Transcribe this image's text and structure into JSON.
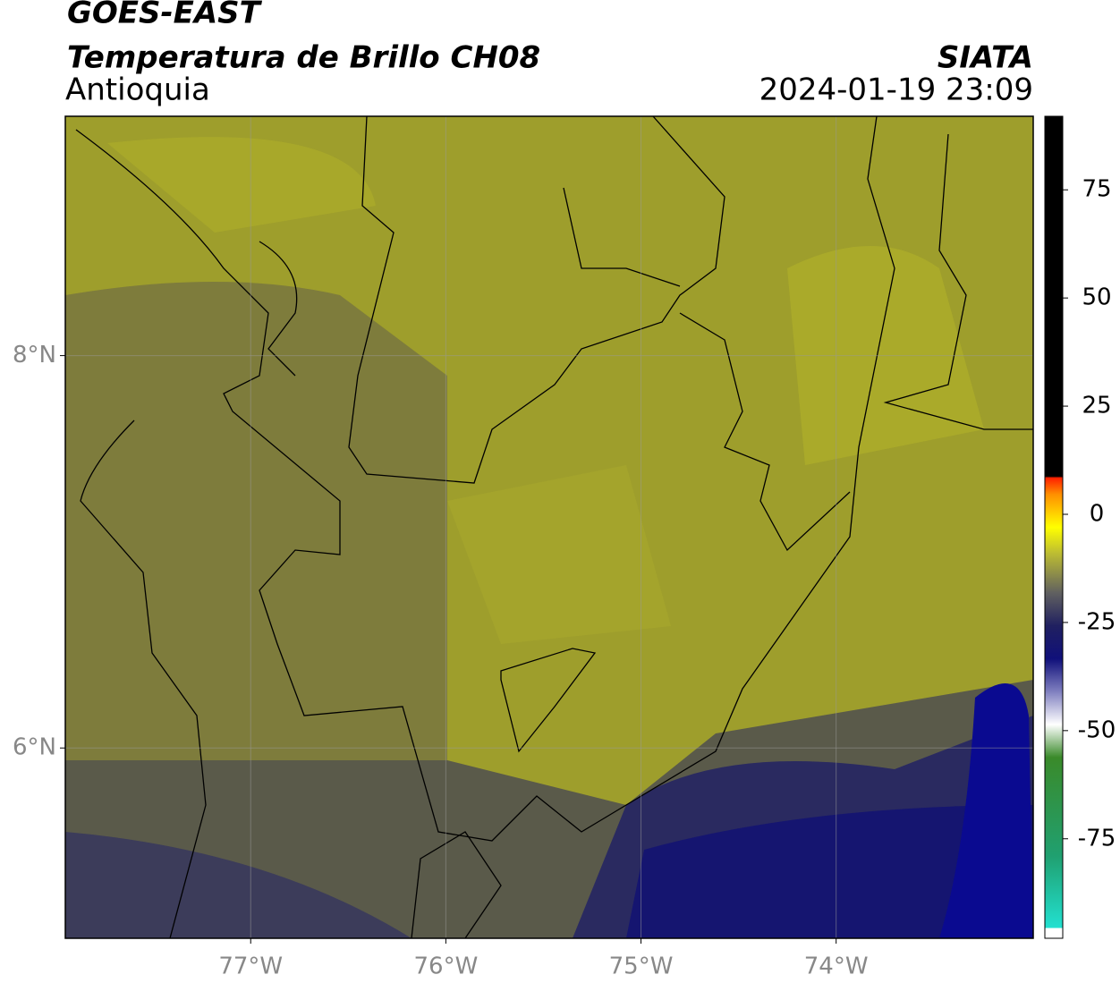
{
  "header": {
    "title": "GOES-EAST",
    "subtitle": "Temperatura de Brillo CH08",
    "source": "SIATA",
    "region": "Antioquia",
    "datetime": "2024-01-19 23:09"
  },
  "map": {
    "xlim": [
      -77.95,
      -72.99
    ],
    "ylim": [
      5.03,
      9.22
    ],
    "xticks": [
      {
        "value": -77,
        "label": "77°W"
      },
      {
        "value": -76,
        "label": "76°W"
      },
      {
        "value": -75,
        "label": "75°W"
      },
      {
        "value": -74,
        "label": "74°W"
      }
    ],
    "yticks": [
      {
        "value": 8,
        "label": "8°N"
      },
      {
        "value": 6,
        "label": "6°N"
      }
    ],
    "grid": true
  },
  "colorbar": {
    "lim": [
      -98,
      92
    ],
    "ticks": [
      75,
      50,
      25,
      0,
      -25,
      -50,
      -75
    ]
  }
}
